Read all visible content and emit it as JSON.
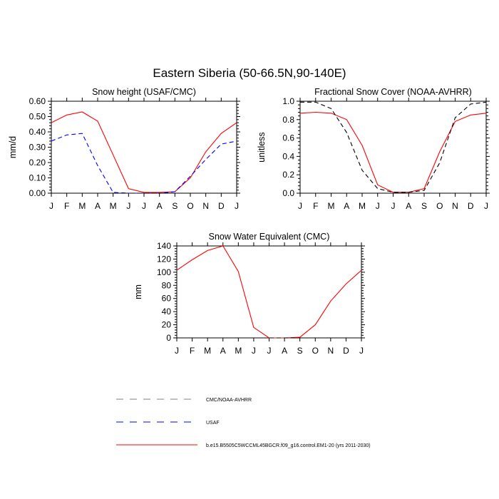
{
  "figure": {
    "title": "Eastern Siberia (50-66.5N,90-140E)"
  },
  "colors": {
    "model": "#ff0000",
    "usaf": "#0000ff",
    "obs": "#000000",
    "legend_grey": "#808080"
  },
  "legend": {
    "items": [
      {
        "label": "CMC/NOAA-AVHRR",
        "color": "#808080",
        "dash": true
      },
      {
        "label": "USAF",
        "color": "#0000ff",
        "dash": true
      },
      {
        "label": "b.e15.B5505C5WCCML45BGCR.f09_g16.control.EM1-20 (yrs 2011-2030)",
        "color": "#ff0000",
        "dash": false
      }
    ]
  },
  "chart_data": [
    {
      "type": "line",
      "title": "Snow height (USAF/CMC)",
      "xlabel": "",
      "ylabel": "mm/d",
      "categories": [
        "J",
        "F",
        "M",
        "A",
        "M",
        "J",
        "J",
        "A",
        "S",
        "O",
        "N",
        "D",
        "J"
      ],
      "ylim": [
        0,
        0.6
      ],
      "yticks": [
        "0.00",
        "0.10",
        "0.20",
        "0.30",
        "0.40",
        "0.50",
        "0.60"
      ],
      "series": [
        {
          "color": "#ff0000",
          "dash": false,
          "values": [
            0.46,
            0.51,
            0.53,
            0.47,
            0.25,
            0.03,
            0.005,
            0.005,
            0.01,
            0.1,
            0.27,
            0.39,
            0.46
          ]
        },
        {
          "color": "#0000ff",
          "dash": true,
          "values": [
            0.34,
            0.38,
            0.39,
            0.18,
            0.005,
            0.0,
            0.0,
            0.0,
            0.01,
            0.11,
            0.22,
            0.32,
            0.34
          ]
        },
        {
          "color": "#000000",
          "dash": true,
          "values": [
            0,
            0,
            0,
            0,
            0,
            0,
            0,
            0,
            0,
            0,
            0,
            0,
            0
          ]
        }
      ]
    },
    {
      "type": "line",
      "title": "Fractional Snow Cover (NOAA-AVHRR)",
      "xlabel": "",
      "ylabel": "unitless",
      "categories": [
        "J",
        "F",
        "M",
        "A",
        "M",
        "J",
        "J",
        "A",
        "S",
        "O",
        "N",
        "D",
        "J"
      ],
      "ylim": [
        0,
        1.0
      ],
      "yticks": [
        "0.0",
        "0.2",
        "0.4",
        "0.6",
        "0.8",
        "1.0"
      ],
      "series": [
        {
          "color": "#ff0000",
          "dash": false,
          "values": [
            0.87,
            0.88,
            0.87,
            0.8,
            0.52,
            0.09,
            0.01,
            0.01,
            0.05,
            0.45,
            0.78,
            0.85,
            0.87
          ]
        },
        {
          "color": "#000000",
          "dash": true,
          "values": [
            0.99,
            0.99,
            0.92,
            0.66,
            0.25,
            0.05,
            0.01,
            0.01,
            0.03,
            0.33,
            0.82,
            0.97,
            0.99
          ]
        }
      ]
    },
    {
      "type": "line",
      "title": "Snow Water Equivalent (CMC)",
      "xlabel": "",
      "ylabel": "mm",
      "categories": [
        "J",
        "F",
        "M",
        "A",
        "M",
        "J",
        "J",
        "A",
        "S",
        "O",
        "N",
        "D",
        "J"
      ],
      "ylim": [
        0,
        140
      ],
      "yticks": [
        "0",
        "20",
        "40",
        "60",
        "80",
        "100",
        "120",
        "140"
      ],
      "series": [
        {
          "color": "#ff0000",
          "dash": false,
          "values": [
            103,
            119,
            133,
            140,
            101,
            16,
            0,
            0,
            1,
            20,
            56,
            82,
            103
          ]
        },
        {
          "color": "#000000",
          "dash": true,
          "values": [
            0,
            0,
            0,
            0,
            0,
            0,
            0,
            0,
            0,
            0,
            0,
            0,
            0
          ]
        }
      ]
    }
  ]
}
